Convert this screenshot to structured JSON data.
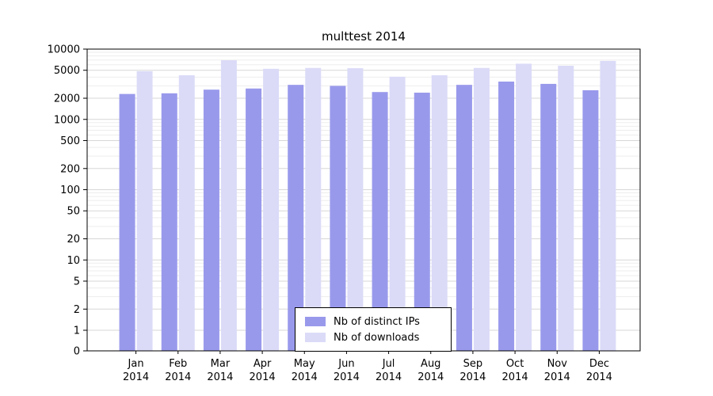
{
  "chart_data": {
    "type": "bar",
    "title": "multtest 2014",
    "scale": "log",
    "grid": true,
    "legend_position": "bottom-center",
    "year": "2014",
    "categories": [
      "Jan",
      "Feb",
      "Mar",
      "Apr",
      "May",
      "Jun",
      "Jul",
      "Aug",
      "Sep",
      "Oct",
      "Nov",
      "Dec"
    ],
    "y_ticks": [
      0,
      1,
      2,
      5,
      10,
      20,
      50,
      100,
      200,
      500,
      1000,
      2000,
      5000,
      10000
    ],
    "ylim": [
      0,
      10000
    ],
    "series": [
      {
        "name": "Nb of distinct IPs",
        "color": "#9999ec",
        "values": [
          2300,
          2350,
          2650,
          2750,
          3100,
          3000,
          2450,
          2400,
          3100,
          3450,
          3200,
          2600
        ]
      },
      {
        "name": "Nb of downloads",
        "color": "#dbdbf8",
        "values": [
          4850,
          4250,
          6950,
          5250,
          5400,
          5350,
          4050,
          4250,
          5400,
          6200,
          5800,
          6800
        ]
      }
    ],
    "colors": {
      "major_grid": "#d7d7d7",
      "minor_grid": "#ededed",
      "axis": "#000000"
    }
  }
}
